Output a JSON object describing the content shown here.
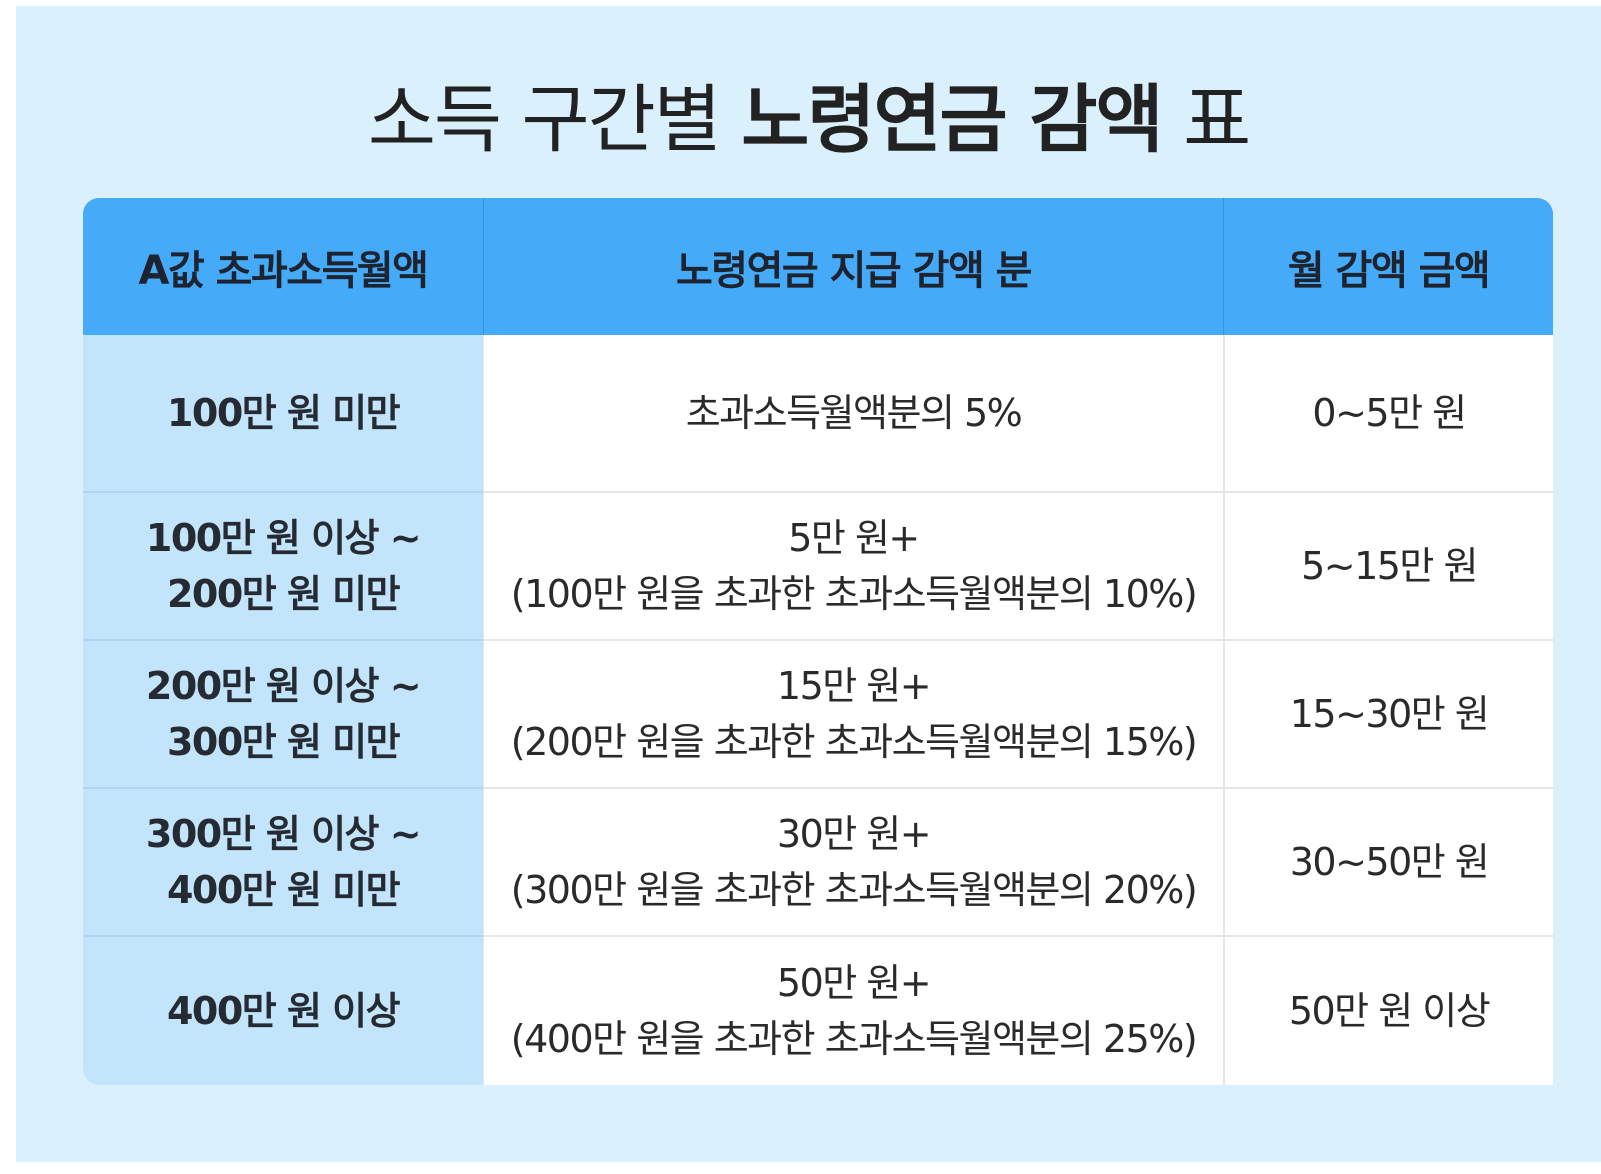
{
  "title": {
    "part1": "소득 구간별",
    "part2": "노령연금 감액",
    "part3": "표"
  },
  "table": {
    "headers": [
      "A값 초과소득월액",
      "노령연금 지급 감액 분",
      "월 감액 금액"
    ],
    "rows": [
      {
        "range": [
          "100만 원 미만"
        ],
        "reduction": [
          "초과소득월액분의 5%"
        ],
        "amount": "0~5만 원"
      },
      {
        "range": [
          "100만 원 이상 ~",
          "200만 원 미만"
        ],
        "reduction": [
          "5만 원+",
          "(100만 원을 초과한 초과소득월액분의 10%)"
        ],
        "amount": "5~15만 원"
      },
      {
        "range": [
          "200만 원 이상 ~",
          "300만 원 미만"
        ],
        "reduction": [
          "15만 원+",
          "(200만 원을 초과한 초과소득월액분의 15%)"
        ],
        "amount": "15~30만 원"
      },
      {
        "range": [
          "300만 원 이상 ~",
          "400만 원 미만"
        ],
        "reduction": [
          "30만 원+",
          "(300만 원을 초과한 초과소득월액분의 20%)"
        ],
        "amount": "30~50만 원"
      },
      {
        "range": [
          "400만 원 이상"
        ],
        "reduction": [
          "50만 원+",
          "(400만 원을 초과한 초과소득월액분의 25%)"
        ],
        "amount": "50만 원 이상"
      }
    ]
  },
  "colors": {
    "background": "#daf0fc",
    "header": "#45aaf8",
    "range_column": "#c3e5fb",
    "cell": "#ffffff"
  }
}
